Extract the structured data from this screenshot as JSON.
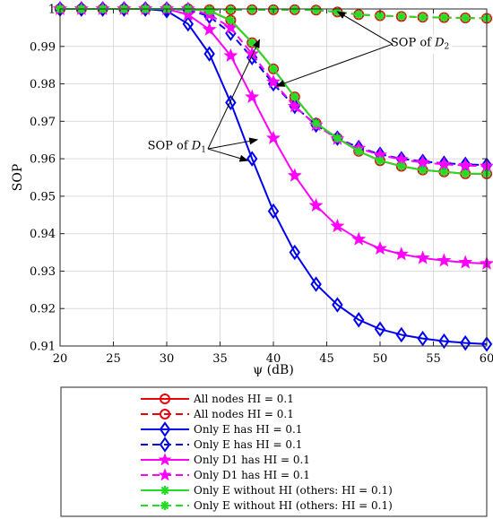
{
  "chart_data": {
    "type": "line",
    "title": "",
    "xlabel": "ψ (dB)",
    "ylabel": "SOP",
    "xlim": [
      20,
      60
    ],
    "ylim": [
      0.91,
      1.0
    ],
    "xticks": [
      20,
      25,
      30,
      35,
      40,
      45,
      50,
      55,
      60
    ],
    "yticks": [
      0.91,
      0.92,
      0.93,
      0.94,
      0.95,
      0.96,
      0.97,
      0.98,
      0.99,
      1
    ],
    "xtick_labels": [
      "20",
      "25",
      "30",
      "35",
      "40",
      "45",
      "50",
      "55",
      "60"
    ],
    "ytick_labels": [
      "0.91",
      "0.92",
      "0.93",
      "0.94",
      "0.95",
      "0.96",
      "0.97",
      "0.98",
      "0.99",
      "1"
    ],
    "grid": true,
    "legend_position": "bottom",
    "series": [
      {
        "name": "All nodes HI = 0.1",
        "color": "#e8000b",
        "dash": "solid",
        "marker": "circle",
        "curve": "D2",
        "x": [
          20,
          22,
          24,
          26,
          28,
          30,
          32,
          34,
          36,
          38,
          40,
          42,
          44,
          46,
          48,
          50,
          52,
          54,
          56,
          58,
          60
        ],
        "y": [
          1,
          1,
          1,
          1,
          1,
          1,
          1,
          0.9995,
          0.997,
          0.991,
          0.984,
          0.9765,
          0.9695,
          0.9655,
          0.962,
          0.9595,
          0.958,
          0.957,
          0.9565,
          0.956,
          0.956
        ]
      },
      {
        "name": "All nodes HI = 0.1",
        "color": "#e8000b",
        "dash": "dashed",
        "marker": "circle",
        "curve": "D2",
        "x": [
          20,
          22,
          24,
          26,
          28,
          30,
          32,
          34,
          36,
          38,
          40,
          42,
          44,
          46,
          48,
          50,
          52,
          54,
          56,
          58,
          60
        ],
        "y": [
          1,
          1,
          1,
          1,
          1,
          1,
          1,
          0.9998,
          0.9998,
          0.9998,
          0.9998,
          0.9998,
          0.9997,
          0.9992,
          0.9985,
          0.9982,
          0.998,
          0.9978,
          0.9977,
          0.9976,
          0.9975
        ]
      },
      {
        "name": "Only E has HI = 0.1",
        "color": "#0000ee",
        "dash": "solid",
        "marker": "diamond",
        "curve": "D1",
        "x": [
          20,
          22,
          24,
          26,
          28,
          30,
          32,
          34,
          36,
          38,
          40,
          42,
          44,
          46,
          48,
          50,
          52,
          54,
          56,
          58,
          60
        ],
        "y": [
          1,
          1,
          1,
          1,
          1,
          0.9995,
          0.996,
          0.988,
          0.975,
          0.96,
          0.946,
          0.935,
          0.9265,
          0.921,
          0.917,
          0.9145,
          0.913,
          0.912,
          0.9113,
          0.9108,
          0.9105
        ]
      },
      {
        "name": "Only E has HI = 0.1",
        "color": "#0000ee",
        "dash": "dashed",
        "marker": "diamond",
        "curve": "D2",
        "x": [
          20,
          22,
          24,
          26,
          28,
          30,
          32,
          34,
          36,
          38,
          40,
          42,
          44,
          46,
          48,
          50,
          52,
          54,
          56,
          58,
          60
        ],
        "y": [
          1,
          1,
          1,
          1,
          1,
          1,
          0.9998,
          0.998,
          0.9935,
          0.987,
          0.98,
          0.974,
          0.969,
          0.9655,
          0.963,
          0.9612,
          0.96,
          0.9593,
          0.9588,
          0.9585,
          0.9583
        ]
      },
      {
        "name": "Only D1 has HI = 0.1",
        "color": "#ff00ff",
        "dash": "solid",
        "marker": "star",
        "curve": "D1",
        "x": [
          20,
          22,
          24,
          26,
          28,
          30,
          32,
          34,
          36,
          38,
          40,
          42,
          44,
          46,
          48,
          50,
          52,
          54,
          56,
          58,
          60
        ],
        "y": [
          1,
          1,
          1,
          1,
          1,
          1,
          0.9985,
          0.9945,
          0.9875,
          0.9765,
          0.9655,
          0.9555,
          0.9475,
          0.942,
          0.9385,
          0.936,
          0.9345,
          0.9335,
          0.9328,
          0.9323,
          0.932
        ]
      },
      {
        "name": "Only D1 has HI = 0.1",
        "color": "#ff00ff",
        "dash": "dashed",
        "marker": "star",
        "curve": "D2",
        "x": [
          20,
          22,
          24,
          26,
          28,
          30,
          32,
          34,
          36,
          38,
          40,
          42,
          44,
          46,
          48,
          50,
          52,
          54,
          56,
          58,
          60
        ],
        "y": [
          1,
          1,
          1,
          1,
          1,
          1,
          1,
          0.9985,
          0.995,
          0.988,
          0.9805,
          0.974,
          0.969,
          0.9653,
          0.9628,
          0.961,
          0.9598,
          0.959,
          0.9585,
          0.9582,
          0.958
        ]
      },
      {
        "name": "Only E without HI (others: HI = 0.1)",
        "color": "#22dd22",
        "dash": "solid",
        "marker": "asterisk",
        "curve": "D2",
        "x": [
          20,
          22,
          24,
          26,
          28,
          30,
          32,
          34,
          36,
          38,
          40,
          42,
          44,
          46,
          48,
          50,
          52,
          54,
          56,
          58,
          60
        ],
        "y": [
          1,
          1,
          1,
          1,
          1,
          1,
          1,
          0.9995,
          0.997,
          0.991,
          0.984,
          0.9765,
          0.9695,
          0.9655,
          0.962,
          0.9595,
          0.958,
          0.957,
          0.9565,
          0.956,
          0.956
        ]
      },
      {
        "name": "Only E without HI (others: HI = 0.1)",
        "color": "#22dd22",
        "dash": "dashed",
        "marker": "asterisk",
        "curve": "D2",
        "x": [
          20,
          22,
          24,
          26,
          28,
          30,
          32,
          34,
          36,
          38,
          40,
          42,
          44,
          46,
          48,
          50,
          52,
          54,
          56,
          58,
          60
        ],
        "y": [
          1,
          1,
          1,
          1,
          1,
          1,
          1,
          0.9998,
          0.9998,
          0.9998,
          0.9998,
          0.9998,
          0.9997,
          0.9992,
          0.9985,
          0.9982,
          0.998,
          0.9978,
          0.9977,
          0.9976,
          0.9975
        ]
      }
    ],
    "annotations": [
      {
        "text_prefix": "SOP of ",
        "text_var": "D",
        "text_sub": "2",
        "label_at": [
          51,
          0.9905
        ],
        "targets": [
          [
            46,
            0.9993
          ],
          [
            40.3,
            0.9794
          ]
        ]
      },
      {
        "text_prefix": "SOP of ",
        "text_var": "D",
        "text_sub": "1",
        "label_at": [
          28.2,
          0.963
        ],
        "targets": [
          [
            38.7,
            0.9918
          ],
          [
            38.5,
            0.9651
          ],
          [
            37.6,
            0.9595
          ]
        ]
      }
    ]
  }
}
